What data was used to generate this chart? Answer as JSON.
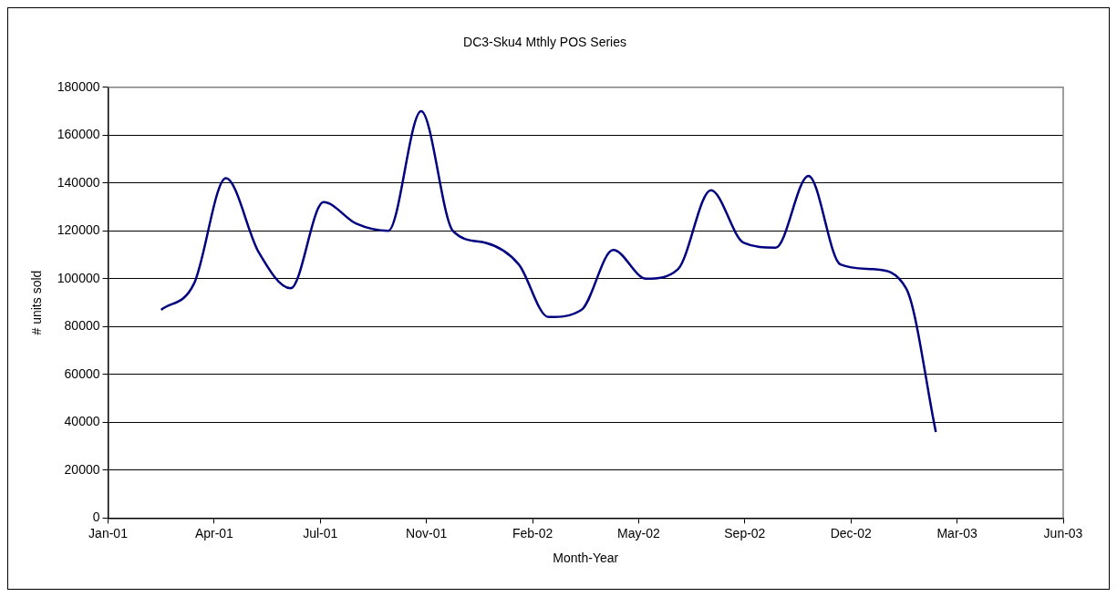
{
  "chart_data": {
    "type": "line",
    "title": "DC3-Sku4 Mthly POS Series",
    "xlabel": "Month-Year",
    "ylabel": "# units sold",
    "x": [
      "2001-02-28",
      "2001-03-31",
      "2001-04-30",
      "2001-05-31",
      "2001-06-30",
      "2001-07-31",
      "2001-08-31",
      "2001-09-30",
      "2001-10-31",
      "2001-11-30",
      "2001-12-31",
      "2002-01-31",
      "2002-02-28",
      "2002-03-31",
      "2002-04-30",
      "2002-05-31",
      "2002-06-30",
      "2002-07-31",
      "2002-08-31",
      "2002-09-30",
      "2002-10-31",
      "2002-11-30",
      "2002-12-31",
      "2003-01-31",
      "2003-02-28"
    ],
    "series": [
      {
        "color": "#000080",
        "values": [
          87000,
          98000,
          142000,
          111000,
          96000,
          132000,
          123000,
          120000,
          170000,
          120000,
          115000,
          106000,
          84000,
          87000,
          112000,
          100000,
          104000,
          137000,
          115000,
          113000,
          143000,
          106000,
          104000,
          96000,
          36000
        ]
      }
    ],
    "xlim": [
      "2001-01-09",
      "2003-06-28"
    ],
    "xticks": [
      {
        "value": "2001-01-09",
        "label": "Jan-01"
      },
      {
        "value": "2001-04-19",
        "label": "Apr-01"
      },
      {
        "value": "2001-07-28",
        "label": "Jul-01"
      },
      {
        "value": "2001-11-05",
        "label": "Nov-01"
      },
      {
        "value": "2002-02-13",
        "label": "Feb-02"
      },
      {
        "value": "2002-05-24",
        "label": "May-02"
      },
      {
        "value": "2002-09-01",
        "label": "Sep-02"
      },
      {
        "value": "2002-12-10",
        "label": "Dec-02"
      },
      {
        "value": "2003-03-20",
        "label": "Mar-03"
      },
      {
        "value": "2003-06-28",
        "label": "Jun-03"
      }
    ],
    "ylim": [
      0,
      180000
    ],
    "yticks": [
      0,
      20000,
      40000,
      60000,
      80000,
      100000,
      120000,
      140000,
      160000,
      180000
    ],
    "grid": "y"
  }
}
